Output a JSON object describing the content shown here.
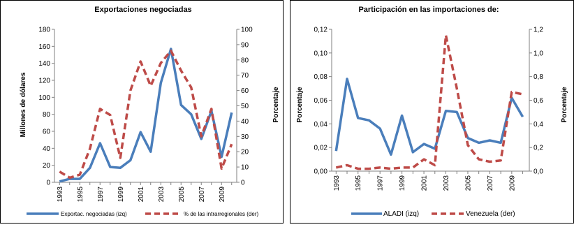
{
  "colors": {
    "series_primary": "#4a7ebb",
    "series_secondary": "#be4b48",
    "axis": "#808080",
    "frame": "#000000"
  },
  "chart_data": [
    {
      "type": "line",
      "title": "Exportaciones negociadas",
      "ylabel": "Millones de dólares",
      "y2label": "Porcentaje",
      "xlabel": "",
      "x": [
        1993,
        1994,
        1995,
        1996,
        1997,
        1998,
        1999,
        2000,
        2001,
        2002,
        2003,
        2004,
        2005,
        2006,
        2007,
        2008,
        2009,
        2010
      ],
      "xtick_labels": [
        "1993",
        "1995",
        "1997",
        "1999",
        "2001",
        "2003",
        "2005",
        "2007",
        "2009"
      ],
      "ylim": [
        0,
        180
      ],
      "yticks": [
        0,
        20,
        40,
        60,
        80,
        100,
        120,
        140,
        160,
        180
      ],
      "y2lim": [
        0,
        100
      ],
      "y2ticks": [
        0,
        10,
        20,
        30,
        40,
        50,
        60,
        70,
        80,
        90,
        100
      ],
      "grid": false,
      "legend_position": "bottom",
      "series": [
        {
          "name": "Exportac. negociadas (izq)",
          "axis": "left",
          "style": "solid",
          "values": [
            1,
            4,
            4,
            17,
            46,
            18,
            17,
            26,
            59,
            36,
            117,
            157,
            91,
            80,
            51,
            84,
            30,
            82
          ]
        },
        {
          "name": "% de las intrarregionales (der)",
          "axis": "right",
          "style": "dashed",
          "values": [
            7,
            3,
            5,
            22,
            48,
            44,
            16,
            60,
            79,
            63,
            78,
            86,
            73,
            62,
            30,
            48,
            9,
            25
          ]
        }
      ]
    },
    {
      "type": "line",
      "title": "Participación en las importaciones de:",
      "ylabel": "Porcentaje",
      "y2label": "Porcentaje",
      "xlabel": "",
      "x": [
        1993,
        1994,
        1995,
        1996,
        1997,
        1998,
        1999,
        2000,
        2001,
        2002,
        2003,
        2004,
        2005,
        2006,
        2007,
        2008,
        2009,
        2010
      ],
      "xtick_labels": [
        "1993",
        "1995",
        "1997",
        "1999",
        "2001",
        "2003",
        "2005",
        "2007",
        "2009"
      ],
      "ylim": [
        0,
        0.12
      ],
      "yticks": [
        "0,00",
        "0,02",
        "0,04",
        "0,06",
        "0,08",
        "0,10",
        "0,12"
      ],
      "y2lim": [
        0,
        1.2
      ],
      "y2ticks": [
        "0,0",
        "0,2",
        "0,4",
        "0,6",
        "0,8",
        "1,0",
        "1,2"
      ],
      "grid": false,
      "legend_position": "bottom",
      "series": [
        {
          "name": "ALADI (izq)",
          "axis": "left",
          "style": "solid",
          "values": [
            0.017,
            0.078,
            0.045,
            0.043,
            0.036,
            0.014,
            0.047,
            0.016,
            0.023,
            0.019,
            0.051,
            0.05,
            0.028,
            0.024,
            0.026,
            0.024,
            0.062,
            0.046
          ]
        },
        {
          "name": "Venezuela (der)",
          "axis": "right",
          "style": "dashed",
          "values": [
            0.03,
            0.05,
            0.02,
            0.02,
            0.03,
            0.02,
            0.03,
            0.03,
            0.1,
            0.05,
            1.15,
            0.7,
            0.22,
            0.1,
            0.08,
            0.09,
            0.67,
            0.65
          ]
        }
      ]
    }
  ]
}
